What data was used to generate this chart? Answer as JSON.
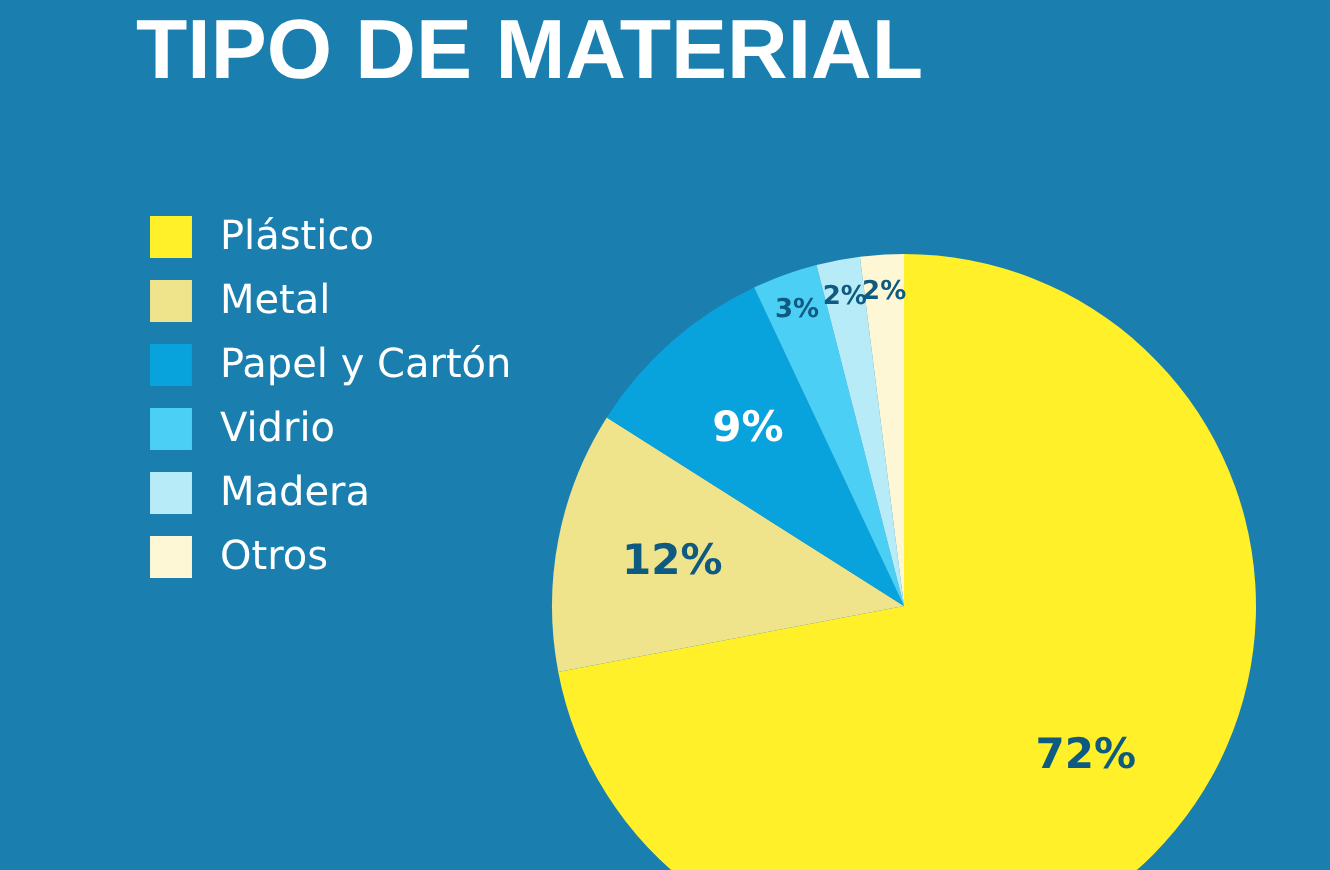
{
  "chart_data": {
    "type": "pie",
    "title": "TIPO DE MATERIAL",
    "categories": [
      "Plástico",
      "Metal",
      "Papel y Cartón",
      "Vidrio",
      "Madera",
      "Otros"
    ],
    "values": [
      72,
      12,
      9,
      3,
      2,
      2
    ],
    "colors": [
      "#fff02a",
      "#efe38c",
      "#08a3dc",
      "#4ccff4",
      "#b7ebf8",
      "#fdf7d6"
    ],
    "value_labels": [
      "72%",
      "12%",
      "9%",
      "3%",
      "2%",
      "2%"
    ],
    "legend": "left"
  }
}
